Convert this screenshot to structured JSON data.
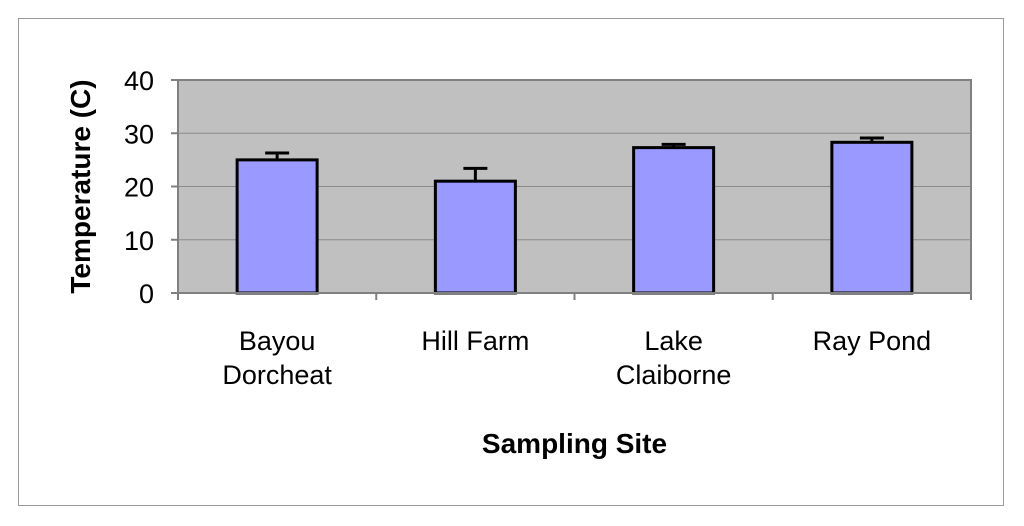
{
  "chart_data": {
    "type": "bar",
    "title": "",
    "xlabel": "Sampling Site",
    "ylabel": "Temperature (C)",
    "categories": [
      [
        "Bayou",
        "Dorcheat"
      ],
      [
        "Hill Farm"
      ],
      [
        "Lake",
        "Claiborne"
      ],
      [
        "Ray Pond"
      ]
    ],
    "values": [
      25,
      21,
      27.3,
      28.3
    ],
    "errors": [
      1.3,
      2.4,
      0.6,
      0.8
    ],
    "ylim": [
      0,
      40
    ],
    "yticks": [
      "0",
      "10",
      "20",
      "30",
      "40"
    ],
    "grid": true,
    "legend": "none",
    "colors": {
      "bar_fill": "#9999ff",
      "bar_stroke": "#000000",
      "plot_background": "#c0c0c0",
      "plot_border": "#808080",
      "gridline": "#8a8a8a"
    }
  }
}
